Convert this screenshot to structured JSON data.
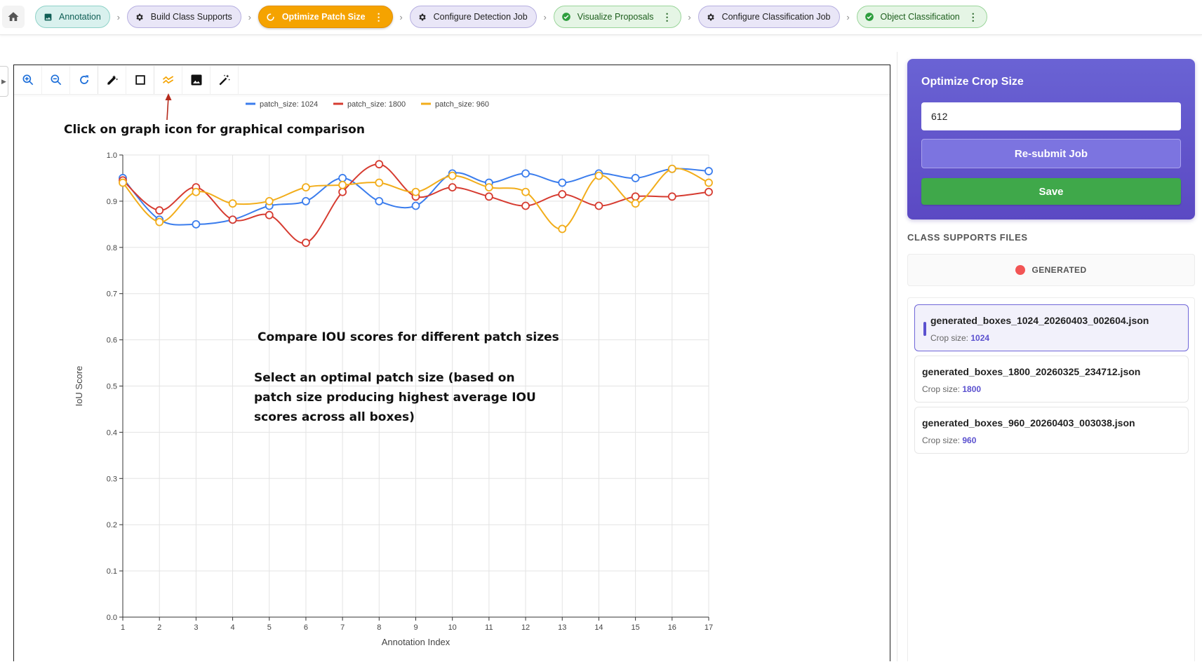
{
  "workflow": {
    "home_icon": "home-icon",
    "steps": [
      {
        "label": "Annotation",
        "icon": "image-icon",
        "style": "teal"
      },
      {
        "label": "Build Class Supports",
        "icon": "gear-icon",
        "style": "lavender"
      },
      {
        "label": "Optimize Patch Size",
        "icon": "spinner-icon",
        "style": "active",
        "menu": "⋮"
      },
      {
        "label": "Configure Detection Job",
        "icon": "gear-icon",
        "style": "lavender"
      },
      {
        "label": "Visualize Proposals",
        "icon": "check-circle-icon",
        "style": "green",
        "menu": "⋮"
      },
      {
        "label": "Configure Classification Job",
        "icon": "gear-icon",
        "style": "lavender"
      },
      {
        "label": "Object Classification",
        "icon": "check-circle-icon",
        "style": "green",
        "menu": "⋮"
      }
    ],
    "separator": "›"
  },
  "toolbar": {
    "tools": [
      "zoom-in-icon",
      "zoom-out-icon",
      "refresh-icon",
      "auto-draw-icon",
      "rectangle-icon",
      "graph-icon",
      "image-icon",
      "magic-wand-icon"
    ],
    "active_tool": "graph-icon",
    "accent": "#f5a300"
  },
  "annotations": {
    "graph_hint": "Click on graph icon for graphical comparison",
    "compare": "Compare IOU scores for different patch sizes",
    "select_line1": "Select an optimal patch size (based on",
    "select_line2": "patch size producing highest average IOU",
    "select_line3": "scores across all boxes)"
  },
  "chart_data": {
    "type": "line",
    "xlabel": "Annotation Index",
    "ylabel": "IoU Score",
    "ylim": [
      0.0,
      1.0
    ],
    "yticks": [
      "0.0",
      "0.1",
      "0.2",
      "0.3",
      "0.4",
      "0.5",
      "0.6",
      "0.7",
      "0.8",
      "0.9",
      "1.0"
    ],
    "x": [
      1,
      2,
      3,
      4,
      5,
      6,
      7,
      8,
      9,
      10,
      11,
      12,
      13,
      14,
      15,
      16,
      17
    ],
    "grid": true,
    "legend_position": "top",
    "series": [
      {
        "name": "patch_size: 1024",
        "color": "#3b7ded",
        "values": [
          0.95,
          0.86,
          0.85,
          0.86,
          0.89,
          0.9,
          0.95,
          0.9,
          0.89,
          0.96,
          0.94,
          0.96,
          0.94,
          0.96,
          0.95,
          0.97,
          0.965
        ]
      },
      {
        "name": "patch_size: 1800",
        "color": "#d63b30",
        "values": [
          0.945,
          0.88,
          0.93,
          0.86,
          0.87,
          0.81,
          0.92,
          0.98,
          0.91,
          0.93,
          0.91,
          0.89,
          0.915,
          0.89,
          0.91,
          0.91,
          0.92
        ]
      },
      {
        "name": "patch_size: 960",
        "color": "#f2ad1a",
        "values": [
          0.94,
          0.855,
          0.92,
          0.895,
          0.9,
          0.93,
          0.935,
          0.94,
          0.92,
          0.955,
          0.93,
          0.92,
          0.84,
          0.955,
          0.895,
          0.97,
          0.94
        ]
      }
    ]
  },
  "sidebar": {
    "card_title": "Optimize Crop Size",
    "crop_value": "612",
    "resubmit_label": "Re-submit Job",
    "save_label": "Save",
    "section_title": "CLASS SUPPORTS FILES",
    "filter_label": "GENERATED",
    "crop_prefix": "Crop size: ",
    "files": [
      {
        "name": "generated_boxes_1024_20260403_002604.json",
        "crop": "1024",
        "active": true
      },
      {
        "name": "generated_boxes_1800_20260325_234712.json",
        "crop": "1800",
        "active": false
      },
      {
        "name": "generated_boxes_960_20260403_003038.json",
        "crop": "960",
        "active": false
      }
    ]
  }
}
